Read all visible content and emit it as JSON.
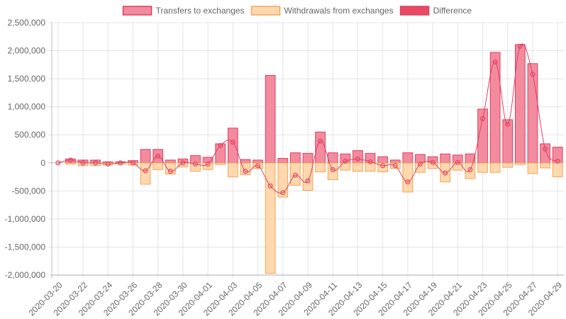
{
  "chart_data": {
    "type": "bar",
    "title": "",
    "xlabel": "",
    "ylabel": "",
    "ylim": [
      -2000000,
      2500000
    ],
    "yticks": [
      2500000,
      2000000,
      1500000,
      1000000,
      500000,
      0,
      -500000,
      -1000000,
      -1500000,
      -2000000
    ],
    "ytick_labels": [
      "2,500,000",
      "2,000,000",
      "1,500,000",
      "1,000,000",
      "500,000",
      "0",
      "-500,000",
      "-1,000,000",
      "-1,500,000",
      "-2,000,000"
    ],
    "legend_position": "top",
    "grid": true,
    "categories": [
      "2020-03-20",
      "2020-03-21",
      "2020-03-22",
      "2020-03-23",
      "2020-03-24",
      "2020-03-25",
      "2020-03-26",
      "2020-03-27",
      "2020-03-28",
      "2020-03-29",
      "2020-03-30",
      "2020-03-31",
      "2020-04-01",
      "2020-04-02",
      "2020-04-03",
      "2020-04-04",
      "2020-04-05",
      "2020-04-06",
      "2020-04-07",
      "2020-04-08",
      "2020-04-09",
      "2020-04-10",
      "2020-04-11",
      "2020-04-12",
      "2020-04-13",
      "2020-04-14",
      "2020-04-15",
      "2020-04-16",
      "2020-04-17",
      "2020-04-18",
      "2020-04-19",
      "2020-04-20",
      "2020-04-21",
      "2020-04-22",
      "2020-04-23",
      "2020-04-24",
      "2020-04-25",
      "2020-04-26",
      "2020-04-27",
      "2020-04-28",
      "2020-04-29"
    ],
    "xtick_labels": [
      "2020-03-20",
      "2020-03-22",
      "2020-03-24",
      "2020-03-26",
      "2020-03-28",
      "2020-03-30",
      "2020-04-01",
      "2020-04-03",
      "2020-04-05",
      "2020-04-07",
      "2020-04-09",
      "2020-04-11",
      "2020-04-13",
      "2020-04-15",
      "2020-04-17",
      "2020-04-19",
      "2020-04-21",
      "2020-04-23",
      "2020-04-25",
      "2020-04-27",
      "2020-04-29"
    ],
    "series": [
      {
        "name": "Transfers to exchanges",
        "type": "bar",
        "fill": "#f38b9f",
        "stroke": "#de3f5c",
        "values": [
          0,
          70000,
          50000,
          50000,
          20000,
          20000,
          40000,
          240000,
          240000,
          50000,
          70000,
          130000,
          100000,
          340000,
          620000,
          60000,
          50000,
          1560000,
          80000,
          180000,
          170000,
          550000,
          180000,
          160000,
          220000,
          170000,
          110000,
          50000,
          180000,
          150000,
          110000,
          160000,
          140000,
          160000,
          960000,
          1970000,
          770000,
          2110000,
          1770000,
          340000,
          280000
        ]
      },
      {
        "name": "Withdrawals from exchanges",
        "type": "bar",
        "fill": "#ffd8ae",
        "stroke": "#f3a55b",
        "values": [
          0,
          -20000,
          -50000,
          -50000,
          -40000,
          -20000,
          -40000,
          -380000,
          -120000,
          -200000,
          -70000,
          -150000,
          -120000,
          -30000,
          -250000,
          -210000,
          -100000,
          -1970000,
          -610000,
          -400000,
          -490000,
          -160000,
          -300000,
          -130000,
          -150000,
          -150000,
          -160000,
          -100000,
          -520000,
          -170000,
          -100000,
          -340000,
          -130000,
          -280000,
          -170000,
          -170000,
          -80000,
          -30000,
          -190000,
          -90000,
          -250000
        ]
      },
      {
        "name": "Difference",
        "type": "line",
        "fill": "#ea4965",
        "stroke": "#e0415e",
        "values": [
          0,
          50000,
          0,
          0,
          -20000,
          0,
          0,
          -140000,
          120000,
          -150000,
          0,
          -20000,
          -20000,
          310000,
          370000,
          -150000,
          -50000,
          -410000,
          -530000,
          -220000,
          -320000,
          390000,
          -120000,
          30000,
          70000,
          20000,
          -50000,
          -50000,
          -340000,
          -20000,
          10000,
          -180000,
          10000,
          -120000,
          790000,
          1800000,
          690000,
          2080000,
          1580000,
          250000,
          30000
        ]
      }
    ]
  }
}
